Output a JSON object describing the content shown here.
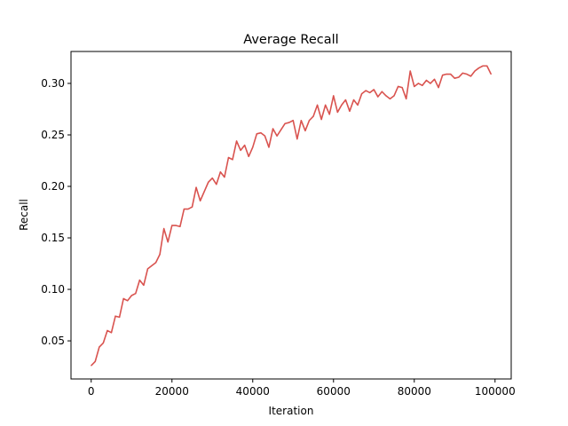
{
  "chart_data": {
    "type": "line",
    "title": "Average Recall",
    "xlabel": "Iteration",
    "ylabel": "Recall",
    "xlim": [
      -5000,
      104000
    ],
    "ylim": [
      0.013,
      0.331
    ],
    "x_ticks": [
      0,
      20000,
      40000,
      60000,
      80000,
      100000
    ],
    "y_ticks": [
      0.05,
      0.1,
      0.15,
      0.2,
      0.25,
      0.3
    ],
    "x_tick_labels": [
      "0",
      "20000",
      "40000",
      "60000",
      "80000",
      "100000"
    ],
    "y_tick_labels": [
      "0.05",
      "0.10",
      "0.15",
      "0.20",
      "0.25",
      "0.30"
    ],
    "grid": false,
    "series": [
      {
        "color": "#d9534f",
        "x": [
          0,
          1000,
          2000,
          3000,
          4000,
          5000,
          6000,
          7000,
          8000,
          9000,
          10000,
          11000,
          12000,
          13000,
          14000,
          15000,
          16000,
          17000,
          18000,
          19000,
          20000,
          21000,
          22000,
          23000,
          24000,
          25000,
          26000,
          27000,
          28000,
          29000,
          30000,
          31000,
          32000,
          33000,
          34000,
          35000,
          36000,
          37000,
          38000,
          39000,
          40000,
          41000,
          42000,
          43000,
          44000,
          45000,
          46000,
          47000,
          48000,
          49000,
          50000,
          51000,
          52000,
          53000,
          54000,
          55000,
          56000,
          57000,
          58000,
          59000,
          60000,
          61000,
          62000,
          63000,
          64000,
          65000,
          66000,
          67000,
          68000,
          69000,
          70000,
          71000,
          72000,
          73000,
          74000,
          75000,
          76000,
          77000,
          78000,
          79000,
          80000,
          81000,
          82000,
          83000,
          84000,
          85000,
          86000,
          87000,
          88000,
          89000,
          90000,
          91000,
          92000,
          93000,
          94000,
          95000,
          96000,
          97000,
          98000,
          99000
        ],
        "values": [
          0.026,
          0.03,
          0.044,
          0.048,
          0.06,
          0.058,
          0.074,
          0.073,
          0.091,
          0.089,
          0.094,
          0.096,
          0.109,
          0.104,
          0.12,
          0.123,
          0.126,
          0.134,
          0.159,
          0.146,
          0.162,
          0.162,
          0.161,
          0.178,
          0.178,
          0.18,
          0.199,
          0.186,
          0.195,
          0.204,
          0.208,
          0.202,
          0.214,
          0.209,
          0.228,
          0.226,
          0.244,
          0.235,
          0.24,
          0.229,
          0.238,
          0.251,
          0.252,
          0.249,
          0.238,
          0.256,
          0.249,
          0.255,
          0.261,
          0.262,
          0.264,
          0.246,
          0.264,
          0.254,
          0.264,
          0.268,
          0.279,
          0.265,
          0.279,
          0.27,
          0.288,
          0.272,
          0.279,
          0.284,
          0.273,
          0.284,
          0.279,
          0.29,
          0.293,
          0.291,
          0.294,
          0.287,
          0.292,
          0.288,
          0.285,
          0.288,
          0.297,
          0.296,
          0.285,
          0.312,
          0.297,
          0.3,
          0.298,
          0.303,
          0.3,
          0.304,
          0.296,
          0.308,
          0.309,
          0.309,
          0.305,
          0.306,
          0.31,
          0.309,
          0.307,
          0.312,
          0.315,
          0.317,
          0.317,
          0.309
        ]
      }
    ]
  }
}
